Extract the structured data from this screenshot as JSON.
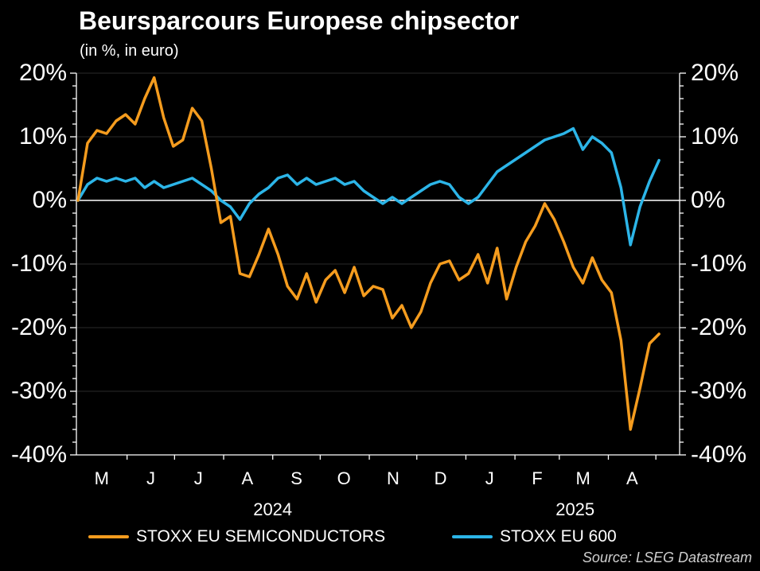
{
  "title": "Beursparcours Europese chipsector",
  "subtitle": "(in %, in euro)",
  "source": "Source: LSEG Datastream",
  "colors": {
    "background": "#000000",
    "semiconductors": "#F59C1E",
    "stoxx600": "#2CB5E8",
    "axis": "#FFFFFF",
    "zero_line": "#FFFFFF",
    "gridline": "#2A2A2A",
    "source_text": "#CFCFCF"
  },
  "legend": {
    "items": [
      {
        "label": "STOXX EU SEMICONDUCTORS",
        "color": "#F59C1E"
      },
      {
        "label": "STOXX EU 600",
        "color": "#2CB5E8"
      }
    ]
  },
  "chart_data": {
    "type": "line",
    "title": "Beursparcours Europese chipsector",
    "subtitle": "(in %, in euro)",
    "ylabel": "%",
    "ylim": [
      -40,
      20
    ],
    "y_major_step": 10,
    "y_minor_step": 2,
    "y_tick_labels": [
      "20%",
      "10%",
      "0%",
      "-10%",
      "-20%",
      "-30%",
      "-40%"
    ],
    "y_tick_values": [
      20,
      10,
      0,
      -10,
      -20,
      -30,
      -40
    ],
    "gridline_values": [
      20,
      10,
      -10,
      -20,
      -30
    ],
    "x_month_labels": [
      "M",
      "J",
      "J",
      "A",
      "S",
      "O",
      "N",
      "D",
      "J",
      "F",
      "M",
      "A"
    ],
    "x_year_labels": [
      {
        "label": "2024",
        "center_day": 124
      },
      {
        "label": "2025",
        "center_day": 315
      }
    ],
    "x_range_note": "daily index, day 0 = 2024-04-30, data ends ~2025-04-30, axis padded to ~day 381",
    "month_boundary_days": [
      32,
      62,
      93,
      124,
      154,
      185,
      215,
      246,
      277,
      305,
      336,
      366
    ],
    "month_label_days": [
      16,
      47,
      77,
      108,
      139,
      169,
      200,
      230,
      261,
      291,
      320,
      351
    ],
    "axis_total_days": 381,
    "data_start_day": 1,
    "data_end_day": 368,
    "series": [
      {
        "name": "STOXX EU 600",
        "color": "#2CB5E8",
        "values": [
          0,
          2.5,
          3.5,
          3,
          3.5,
          3,
          3.5,
          2,
          3,
          2,
          2.5,
          3,
          3.5,
          2.5,
          1.5,
          0,
          -1,
          -3,
          -0.5,
          1,
          2,
          3.5,
          4,
          2.5,
          3.5,
          2.5,
          3,
          3.5,
          2.5,
          3,
          1.5,
          0.5,
          -0.5,
          0.5,
          -0.5,
          0.5,
          1.5,
          2.5,
          3,
          2.5,
          0.5,
          -0.5,
          0.5,
          2.5,
          4.5,
          5.5,
          6.5,
          7.5,
          8.5,
          9.5,
          10,
          10.5,
          11.3,
          8,
          10,
          9,
          7.5,
          2,
          -7,
          -1,
          3,
          6.3
        ]
      },
      {
        "name": "STOXX EU SEMICONDUCTORS",
        "color": "#F59C1E",
        "values": [
          0,
          9,
          11,
          10.5,
          12.5,
          13.5,
          12,
          16,
          19.3,
          13,
          8.5,
          9.5,
          14.5,
          12.5,
          5,
          -3.5,
          -2.5,
          -11.5,
          -12,
          -8.5,
          -4.5,
          -8.5,
          -13.5,
          -15.5,
          -11.5,
          -16,
          -12.5,
          -11,
          -14.5,
          -10.5,
          -15,
          -13.5,
          -14,
          -18.5,
          -16.5,
          -20,
          -17.5,
          -13,
          -10,
          -9.5,
          -12.5,
          -11.5,
          -8.5,
          -13,
          -7.5,
          -15.5,
          -10.5,
          -6.5,
          -4,
          -0.5,
          -3,
          -6.5,
          -10.5,
          -13,
          -9,
          -12.5,
          -14.5,
          -22,
          -36,
          -29.5,
          -22.5,
          -21
        ]
      }
    ]
  }
}
